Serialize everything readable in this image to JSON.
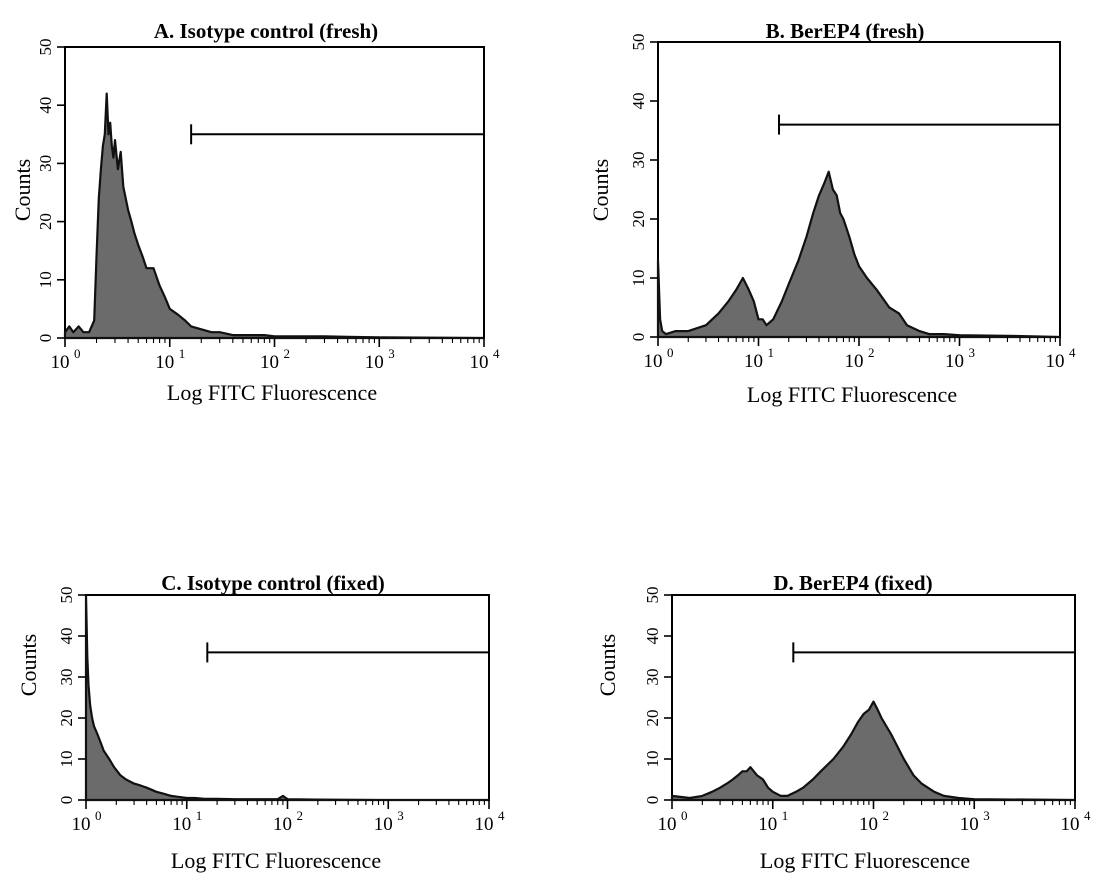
{
  "chart_data": [
    {
      "id": "A",
      "type": "area",
      "title": "A. Isotype control (fresh)",
      "xlabel": "Log FITC Fluorescence",
      "ylabel": "Counts",
      "x_scale": "log",
      "xlim": [
        1,
        10000
      ],
      "ylim": [
        0,
        50
      ],
      "x_ticks": [
        {
          "base": "10",
          "exp": "0"
        },
        {
          "base": "10",
          "exp": "1"
        },
        {
          "base": "10",
          "exp": "2"
        },
        {
          "base": "10",
          "exp": "3"
        },
        {
          "base": "10",
          "exp": "4"
        }
      ],
      "y_ticks": [
        "0",
        "10",
        "20",
        "30",
        "40",
        "50"
      ],
      "gate": {
        "x_start": 16,
        "x_end": 10000,
        "y": 35
      },
      "series": [
        {
          "x": [
            1.0,
            1.1,
            1.2,
            1.35,
            1.5,
            1.7,
            1.9,
            2.0,
            2.1,
            2.2,
            2.3,
            2.4,
            2.5,
            2.6,
            2.7,
            2.8,
            2.9,
            3.0,
            3.2,
            3.4,
            3.6,
            3.8,
            4.0,
            4.3,
            4.6,
            5.0,
            5.5,
            6.0,
            7.0,
            8.0,
            9.0,
            10,
            12,
            14,
            16,
            20,
            25,
            30,
            40,
            60,
            80,
            100,
            150,
            200,
            300,
            500,
            1000,
            10000
          ],
          "values": [
            1,
            2,
            1,
            2,
            1,
            1,
            3,
            14,
            24,
            29,
            33,
            35,
            42,
            35,
            37,
            33,
            31,
            34,
            29,
            32,
            26,
            24,
            22,
            20,
            18,
            16,
            14,
            12,
            12,
            9,
            7,
            5,
            4,
            3,
            2,
            1.5,
            1,
            1,
            0.5,
            0.5,
            0.5,
            0.3,
            0.3,
            0.3,
            0.3,
            0.2,
            0.1,
            0
          ]
        }
      ]
    },
    {
      "id": "B",
      "type": "area",
      "title": "B. BerEP4 (fresh)",
      "xlabel": "Log FITC Fluorescence",
      "ylabel": "Counts",
      "x_scale": "log",
      "xlim": [
        1,
        10000
      ],
      "ylim": [
        0,
        50
      ],
      "x_ticks": [
        {
          "base": "10",
          "exp": "0"
        },
        {
          "base": "10",
          "exp": "1"
        },
        {
          "base": "10",
          "exp": "2"
        },
        {
          "base": "10",
          "exp": "3"
        },
        {
          "base": "10",
          "exp": "4"
        }
      ],
      "y_ticks": [
        "0",
        "10",
        "20",
        "30",
        "40",
        "50"
      ],
      "gate": {
        "x_start": 16,
        "x_end": 10000,
        "y": 36
      },
      "series": [
        {
          "x": [
            1.0,
            1.05,
            1.1,
            1.2,
            1.5,
            2.0,
            3.0,
            4.0,
            5.0,
            6.0,
            7.0,
            8.0,
            9.0,
            10,
            11,
            12,
            14,
            17,
            20,
            25,
            30,
            35,
            40,
            45,
            50,
            55,
            60,
            65,
            70,
            80,
            90,
            100,
            120,
            150,
            200,
            250,
            300,
            400,
            500,
            700,
            1000,
            3000,
            10000
          ],
          "values": [
            13,
            3,
            1,
            0.5,
            1,
            1,
            2,
            4,
            6,
            8,
            10,
            8,
            6,
            3,
            3,
            2,
            3,
            6,
            9,
            13,
            17,
            21,
            24,
            26,
            28,
            25,
            24,
            21,
            20,
            17,
            14,
            12,
            10,
            8,
            5,
            4,
            2,
            1,
            0.5,
            0.5,
            0.3,
            0.2,
            0
          ]
        }
      ]
    },
    {
      "id": "C",
      "type": "area",
      "title": "C. Isotype control (fixed)",
      "xlabel": "Log FITC Fluorescence",
      "ylabel": "Counts",
      "x_scale": "log",
      "xlim": [
        1,
        10000
      ],
      "ylim": [
        0,
        50
      ],
      "x_ticks": [
        {
          "base": "10",
          "exp": "0"
        },
        {
          "base": "10",
          "exp": "1"
        },
        {
          "base": "10",
          "exp": "2"
        },
        {
          "base": "10",
          "exp": "3"
        },
        {
          "base": "10",
          "exp": "4"
        }
      ],
      "y_ticks": [
        "0",
        "10",
        "20",
        "30",
        "40",
        "50"
      ],
      "gate": {
        "x_start": 16,
        "x_end": 10000,
        "y": 36
      },
      "series": [
        {
          "x": [
            1.0,
            1.03,
            1.06,
            1.1,
            1.15,
            1.2,
            1.3,
            1.4,
            1.5,
            1.7,
            1.9,
            2.2,
            2.5,
            3.0,
            3.5,
            4.0,
            5.0,
            6.0,
            7.0,
            8.0,
            10,
            12,
            15,
            20,
            30,
            50,
            80,
            90,
            100,
            200,
            1000,
            10000
          ],
          "values": [
            50,
            35,
            28,
            23,
            20,
            18,
            16,
            14,
            12,
            10,
            8,
            6,
            5,
            4,
            3.5,
            3,
            2,
            1.5,
            1,
            0.8,
            0.5,
            0.5,
            0.3,
            0.3,
            0.2,
            0.2,
            0.2,
            1,
            0.2,
            0.1,
            0,
            0
          ]
        }
      ]
    },
    {
      "id": "D",
      "type": "area",
      "title": "D. BerEP4 (fixed)",
      "xlabel": "Log FITC Fluorescence",
      "ylabel": "Counts",
      "x_scale": "log",
      "xlim": [
        1,
        10000
      ],
      "ylim": [
        0,
        50
      ],
      "x_ticks": [
        {
          "base": "10",
          "exp": "0"
        },
        {
          "base": "10",
          "exp": "1"
        },
        {
          "base": "10",
          "exp": "2"
        },
        {
          "base": "10",
          "exp": "3"
        },
        {
          "base": "10",
          "exp": "4"
        }
      ],
      "y_ticks": [
        "0",
        "10",
        "20",
        "30",
        "40",
        "50"
      ],
      "gate": {
        "x_start": 16,
        "x_end": 10000,
        "y": 36
      },
      "series": [
        {
          "x": [
            1.0,
            1.5,
            2.0,
            2.5,
            3.0,
            3.5,
            4.0,
            4.5,
            5.0,
            5.5,
            6.0,
            7.0,
            8.0,
            9.0,
            10,
            12,
            14,
            17,
            20,
            25,
            30,
            40,
            50,
            60,
            70,
            80,
            90,
            100,
            110,
            120,
            150,
            200,
            250,
            300,
            400,
            500,
            700,
            1000,
            10000
          ],
          "values": [
            1,
            0.5,
            1,
            2,
            3,
            4,
            5,
            6,
            7,
            7,
            8,
            6,
            5,
            3,
            2,
            1,
            1,
            2,
            3,
            5,
            7,
            10,
            13,
            16,
            19,
            21,
            22,
            24,
            22,
            20,
            16,
            10,
            6,
            4,
            2,
            1,
            0.5,
            0.2,
            0
          ]
        }
      ]
    }
  ]
}
